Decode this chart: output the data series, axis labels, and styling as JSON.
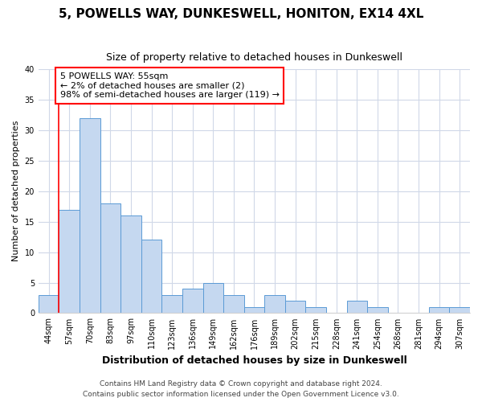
{
  "title": "5, POWELLS WAY, DUNKESWELL, HONITON, EX14 4XL",
  "subtitle": "Size of property relative to detached houses in Dunkeswell",
  "xlabel": "Distribution of detached houses by size in Dunkeswell",
  "ylabel": "Number of detached properties",
  "categories": [
    "44sqm",
    "57sqm",
    "70sqm",
    "83sqm",
    "97sqm",
    "110sqm",
    "123sqm",
    "136sqm",
    "149sqm",
    "162sqm",
    "176sqm",
    "189sqm",
    "202sqm",
    "215sqm",
    "228sqm",
    "241sqm",
    "254sqm",
    "268sqm",
    "281sqm",
    "294sqm",
    "307sqm"
  ],
  "values": [
    3,
    17,
    32,
    18,
    16,
    12,
    3,
    4,
    5,
    3,
    1,
    3,
    2,
    1,
    0,
    2,
    1,
    0,
    0,
    1,
    1
  ],
  "bar_color": "#c5d8f0",
  "bar_edge_color": "#5b9bd5",
  "annotation_line1": "5 POWELLS WAY: 55sqm",
  "annotation_line2": "← 2% of detached houses are smaller (2)",
  "annotation_line3": "98% of semi-detached houses are larger (119) →",
  "annotation_box_color": "white",
  "annotation_box_edge_color": "red",
  "ylim": [
    0,
    40
  ],
  "yticks": [
    0,
    5,
    10,
    15,
    20,
    25,
    30,
    35,
    40
  ],
  "grid_color": "#d0d8e8",
  "background_color": "white",
  "footer_line1": "Contains HM Land Registry data © Crown copyright and database right 2024.",
  "footer_line2": "Contains public sector information licensed under the Open Government Licence v3.0.",
  "title_fontsize": 11,
  "subtitle_fontsize": 9,
  "xlabel_fontsize": 9,
  "ylabel_fontsize": 8,
  "tick_fontsize": 7,
  "footer_fontsize": 6.5,
  "annotation_fontsize": 8
}
